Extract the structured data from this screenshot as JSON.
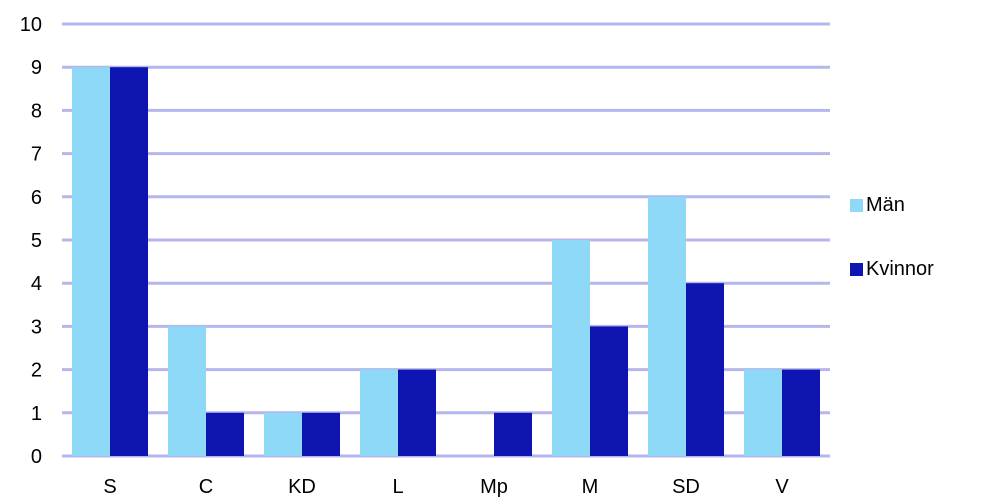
{
  "chart_data": {
    "type": "bar",
    "categories": [
      "S",
      "C",
      "KD",
      "L",
      "Mp",
      "M",
      "SD",
      "V"
    ],
    "series": [
      {
        "name": "Män",
        "values": [
          9,
          3,
          1,
          2,
          0,
          5,
          6,
          2
        ],
        "color": "#8ed8f8"
      },
      {
        "name": "Kvinnor",
        "values": [
          9,
          1,
          1,
          2,
          1,
          3,
          4,
          2
        ],
        "color": "#0f15b0"
      }
    ],
    "ylim": [
      0,
      10
    ],
    "yticks": [
      "0",
      "1",
      "2",
      "3",
      "4",
      "5",
      "6",
      "7",
      "8",
      "9",
      "10"
    ],
    "grid": true,
    "gridline_color": "#b4b6ee",
    "legend_position": "right"
  }
}
